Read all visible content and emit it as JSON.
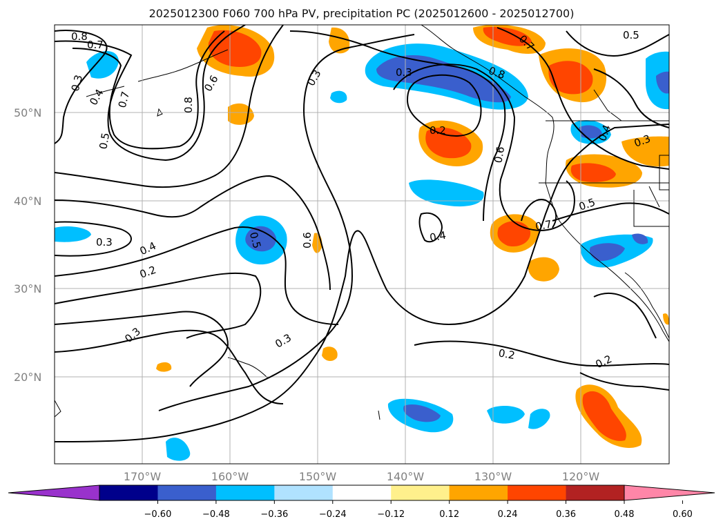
{
  "title": "2025012300 F060 700 hPa PV, precipitation PC (2025012600 - 2025012700)",
  "lat_labels": [
    "50°N",
    "40°N",
    "30°N",
    "20°N"
  ],
  "lon_labels": [
    "170°W",
    "160°W",
    "150°W",
    "140°W",
    "130°W",
    "120°W"
  ],
  "contour_labels": [
    "0.8",
    "0.7",
    "0.3",
    "0.4",
    "0.7",
    "0.8",
    "0.6",
    "0.5",
    "0.3",
    "0.3",
    "0.2",
    "0.8",
    "0.7",
    "0.5",
    "0.3",
    "0.4",
    "0.3",
    "0.4",
    "0.5",
    "0.6",
    "0.6",
    "0.4",
    "0.7",
    "0.5",
    "0.2",
    "0.3",
    "0.3",
    "0.2",
    "0.2"
  ],
  "colorbar": {
    "ticks": [
      "−0.60",
      "−0.48",
      "−0.36",
      "−0.24",
      "−0.12",
      "0.12",
      "0.24",
      "0.36",
      "0.48",
      "0.60"
    ],
    "colors": {
      "under": "#9932cc",
      "bins": [
        "#00008b",
        "#3a5fcd",
        "#00bfff",
        "#b0e2ff",
        "#ffffff",
        "#fff08c",
        "#ffa500",
        "#ff4500",
        "#b22222"
      ],
      "over": "#ff86a8"
    }
  }
}
